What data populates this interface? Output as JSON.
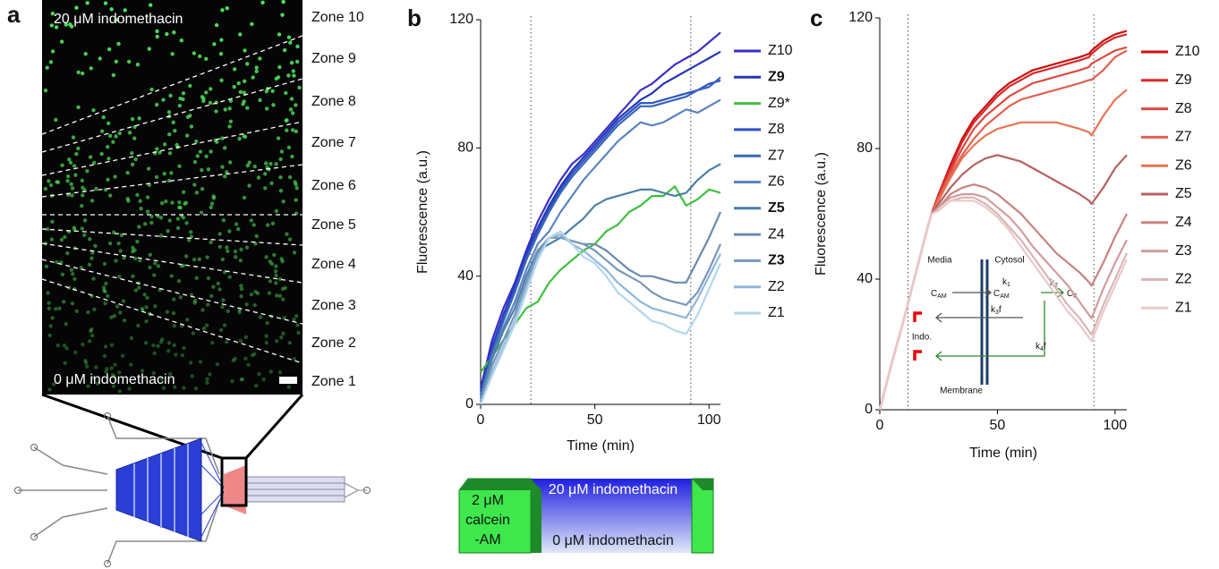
{
  "panel_labels": [
    "a",
    "b",
    "c"
  ],
  "panel_a": {
    "top_label": "20 μM indomethacin",
    "bottom_label": "0 μM indomethacin",
    "zones": [
      "Zone 10",
      "Zone 9",
      "Zone 8",
      "Zone 7",
      "Zone 6",
      "Zone 5",
      "Zone 4",
      "Zone 3",
      "Zone 2",
      "Zone 1"
    ]
  },
  "chart_data": [
    {
      "type": "line",
      "xlabel": "Time (min)",
      "ylabel": "Fluorescence (a.u.)",
      "xlim": [
        0,
        105
      ],
      "xticks": [
        0,
        50,
        100
      ],
      "ylim": [
        0,
        120
      ],
      "yticks": [
        0,
        40,
        80,
        120
      ],
      "vlines": [
        22,
        92
      ],
      "x": [
        0,
        5,
        10,
        15,
        20,
        25,
        30,
        35,
        40,
        45,
        50,
        55,
        60,
        65,
        70,
        75,
        80,
        85,
        90,
        95,
        100,
        105
      ],
      "series": [
        {
          "name": "Z10",
          "color": "#3a2ec8",
          "values": [
            5,
            20,
            30,
            38,
            48,
            57,
            64,
            70,
            75,
            78,
            82,
            86,
            90,
            94,
            98,
            100,
            103,
            106,
            108,
            110,
            113,
            116
          ]
        },
        {
          "name": "Z9",
          "color": "#2336b8",
          "bold": true,
          "values": [
            4,
            18,
            28,
            37,
            47,
            55,
            62,
            68,
            73,
            77,
            81,
            85,
            89,
            92,
            95,
            97,
            100,
            102,
            104,
            106,
            108,
            110
          ]
        },
        {
          "name": "Z9*",
          "color": "#3fbf3f",
          "values": [
            10,
            15,
            20,
            25,
            30,
            32,
            38,
            42,
            45,
            48,
            50,
            54,
            56,
            60,
            62,
            65,
            65,
            68,
            62,
            64,
            67,
            66
          ]
        },
        {
          "name": "Z8",
          "color": "#2a52c4",
          "values": [
            3,
            17,
            27,
            36,
            46,
            54,
            61,
            67,
            72,
            76,
            80,
            84,
            88,
            91,
            94,
            94,
            95,
            96,
            97,
            98,
            100,
            101
          ]
        },
        {
          "name": "Z7",
          "color": "#3a64b8",
          "values": [
            3,
            16,
            26,
            35,
            45,
            53,
            60,
            66,
            71,
            75,
            79,
            83,
            87,
            90,
            93,
            93,
            94,
            95,
            96,
            98,
            99,
            102
          ]
        },
        {
          "name": "Z6",
          "color": "#5b82c2",
          "values": [
            2,
            15,
            24,
            32,
            42,
            50,
            54,
            60,
            65,
            70,
            74,
            78,
            82,
            85,
            88,
            87,
            88,
            90,
            92,
            91,
            93,
            95
          ]
        },
        {
          "name": "Z5",
          "color": "#4a7fa8",
          "bold": true,
          "values": [
            2,
            14,
            23,
            30,
            40,
            48,
            50,
            52,
            55,
            58,
            62,
            64,
            65,
            66,
            67,
            67,
            66,
            65,
            66,
            70,
            73,
            75
          ]
        },
        {
          "name": "Z4",
          "color": "#6a8ab0",
          "values": [
            1,
            12,
            20,
            28,
            38,
            48,
            52,
            52,
            51,
            50,
            50,
            48,
            45,
            42,
            40,
            40,
            39,
            38,
            38,
            45,
            52,
            60
          ]
        },
        {
          "name": "Z3",
          "color": "#7a98ba",
          "bold": true,
          "values": [
            1,
            12,
            20,
            28,
            38,
            47,
            52,
            52,
            51,
            50,
            48,
            45,
            42,
            40,
            38,
            35,
            33,
            32,
            31,
            35,
            42,
            50
          ]
        },
        {
          "name": "Z2",
          "color": "#8fb6da",
          "values": [
            0,
            10,
            18,
            26,
            36,
            46,
            52,
            53,
            50,
            48,
            45,
            42,
            38,
            35,
            32,
            30,
            29,
            28,
            27,
            33,
            40,
            47
          ]
        },
        {
          "name": "Z1",
          "color": "#b2d6ee",
          "values": [
            0,
            9,
            17,
            25,
            35,
            45,
            52,
            54,
            50,
            46,
            44,
            40,
            35,
            32,
            29,
            26,
            25,
            23,
            22,
            28,
            36,
            44
          ]
        }
      ]
    },
    {
      "type": "line",
      "xlabel": "Time (min)",
      "ylabel": "Fluorescence (a.u.)",
      "xlim": [
        0,
        105
      ],
      "xticks": [
        0,
        50,
        100
      ],
      "ylim": [
        0,
        120
      ],
      "yticks": [
        0,
        40,
        80,
        120
      ],
      "vlines": [
        12,
        91
      ],
      "x": [
        0,
        5,
        10,
        15,
        20,
        22,
        25,
        30,
        35,
        40,
        45,
        50,
        55,
        60,
        65,
        70,
        75,
        80,
        85,
        89,
        90,
        95,
        100,
        105
      ],
      "series": [
        {
          "name": "Z10",
          "color": "#cc1010",
          "values": [
            0,
            14,
            27,
            41,
            55,
            60,
            66,
            75,
            83,
            89,
            93,
            97,
            100,
            102,
            104,
            105,
            106,
            107,
            108,
            109,
            110,
            113,
            115,
            116
          ]
        },
        {
          "name": "Z9",
          "color": "#d82828",
          "values": [
            0,
            14,
            27,
            41,
            55,
            60,
            66,
            74,
            82,
            88,
            92,
            96,
            99,
            101,
            103,
            104,
            105,
            106,
            107,
            108,
            109,
            112,
            114,
            115
          ]
        },
        {
          "name": "Z8",
          "color": "#dc4a40",
          "values": [
            0,
            14,
            27,
            41,
            55,
            60,
            65,
            73,
            80,
            86,
            90,
            93,
            96,
            98,
            100,
            101,
            102,
            103,
            104,
            105,
            106,
            108,
            110,
            111
          ]
        },
        {
          "name": "Z7",
          "color": "#e26050",
          "values": [
            0,
            14,
            27,
            41,
            55,
            60,
            65,
            72,
            78,
            83,
            87,
            90,
            93,
            95,
            96,
            97,
            98,
            99,
            100,
            101,
            101,
            104,
            108,
            110
          ]
        },
        {
          "name": "Z6",
          "color": "#e87454",
          "values": [
            0,
            14,
            27,
            41,
            55,
            60,
            64,
            71,
            77,
            81,
            84,
            86,
            87,
            88,
            88,
            88,
            88,
            87,
            86,
            85,
            84,
            90,
            95,
            98
          ]
        },
        {
          "name": "Z5",
          "color": "#b66060",
          "values": [
            0,
            14,
            27,
            41,
            55,
            60,
            63,
            68,
            72,
            75,
            77,
            78,
            77,
            76,
            74,
            72,
            70,
            68,
            66,
            64,
            63,
            68,
            74,
            78
          ]
        },
        {
          "name": "Z4",
          "color": "#c88282",
          "values": [
            0,
            14,
            27,
            41,
            55,
            60,
            62,
            66,
            68,
            69,
            68,
            66,
            63,
            60,
            56,
            52,
            48,
            45,
            42,
            39,
            38,
            45,
            53,
            60
          ]
        },
        {
          "name": "Z3",
          "color": "#d09c9c",
          "values": [
            0,
            14,
            27,
            41,
            55,
            60,
            62,
            65,
            66,
            66,
            65,
            62,
            59,
            55,
            50,
            46,
            42,
            38,
            33,
            29,
            28,
            37,
            45,
            52
          ]
        },
        {
          "name": "Z2",
          "color": "#dcb4b4",
          "values": [
            0,
            14,
            27,
            41,
            55,
            60,
            61,
            64,
            65,
            65,
            63,
            60,
            56,
            52,
            47,
            42,
            37,
            32,
            28,
            24,
            23,
            32,
            40,
            48
          ]
        },
        {
          "name": "Z1",
          "color": "#e8caca",
          "values": [
            0,
            14,
            27,
            41,
            55,
            60,
            61,
            64,
            64,
            64,
            62,
            59,
            55,
            50,
            45,
            40,
            35,
            30,
            26,
            22,
            21,
            30,
            38,
            46
          ]
        }
      ]
    }
  ],
  "protocol": {
    "left_lines": [
      "2 μM",
      "calcein",
      "-AM"
    ],
    "top": "20 μM indomethacin",
    "bottom": "0 μM indomethacin"
  },
  "model_diagram": {
    "media": "Media",
    "cytosol": "Cytosol",
    "membrane": "Membrane",
    "indo": "Indo.",
    "c_am_out": {
      "base": "C",
      "sub": "AM"
    },
    "c_am_in": {
      "base": "C",
      "sub": "AM"
    },
    "c_f": {
      "base": "C",
      "sub": "F"
    },
    "k1": {
      "base": "k",
      "sub": "1"
    },
    "k2": {
      "base": "k",
      "sub": "2"
    },
    "k3f": {
      "base": "k",
      "sub": "3",
      "tail": "f"
    },
    "k4f": {
      "base": "k",
      "sub": "4",
      "tail": "f"
    }
  }
}
